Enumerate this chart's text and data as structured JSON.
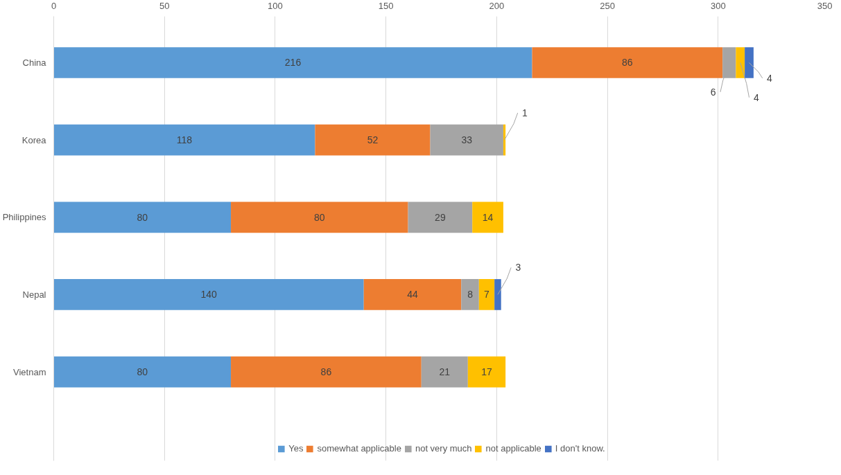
{
  "chart_data": {
    "type": "bar",
    "orientation": "horizontal",
    "stacked": true,
    "data_labels": true,
    "legend": "bottom",
    "grid": "x",
    "categories": [
      "China",
      "Korea",
      "Philippines",
      "Nepal",
      "Vietnam"
    ],
    "xlim": [
      0,
      350
    ],
    "xticks": [
      0,
      50,
      100,
      150,
      200,
      250,
      300,
      350
    ],
    "series": [
      {
        "name": "Yes",
        "color": "#5b9bd5",
        "values": [
          216,
          118,
          80,
          140,
          80
        ]
      },
      {
        "name": "somewhat applicable",
        "color": "#ed7d31",
        "values": [
          86,
          52,
          80,
          44,
          86
        ]
      },
      {
        "name": "not very much",
        "color": "#a5a5a5",
        "values": [
          6,
          33,
          29,
          8,
          21
        ]
      },
      {
        "name": "not applicable",
        "color": "#ffc000",
        "values": [
          4,
          1,
          14,
          7,
          17
        ]
      },
      {
        "name": "I don't know.",
        "color": "#4472c4",
        "values": [
          4,
          null,
          null,
          3,
          null
        ]
      }
    ]
  }
}
